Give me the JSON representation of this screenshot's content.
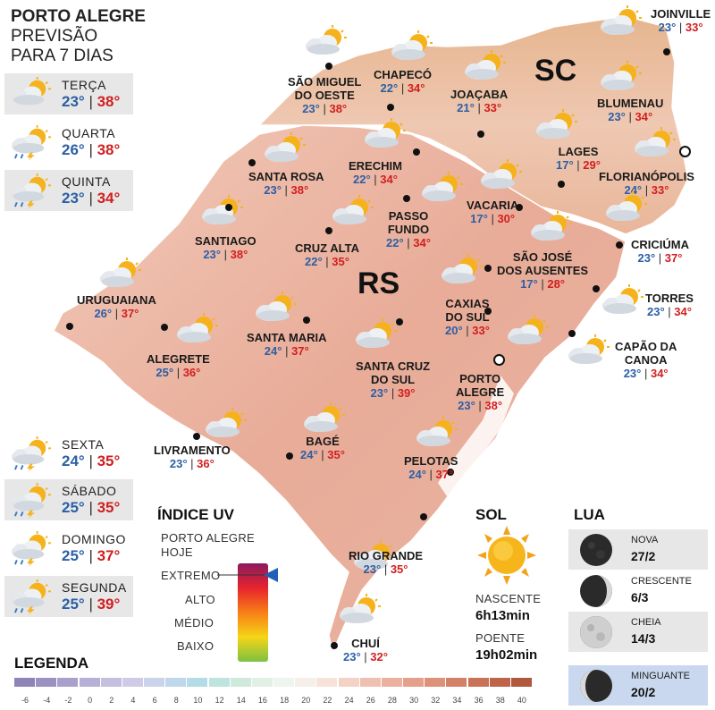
{
  "header": {
    "line1": "PORTO ALEGRE",
    "line2": "PREVISÃO",
    "line3": "PARA 7 DIAS"
  },
  "forecast_days": [
    {
      "day": "TERÇA",
      "min": "23°",
      "max": "38°",
      "icon": "sun-cloud-icon"
    },
    {
      "day": "QUARTA",
      "min": "26°",
      "max": "38°",
      "icon": "storm-sun-icon"
    },
    {
      "day": "QUINTA",
      "min": "23°",
      "max": "34°",
      "icon": "storm-sun-icon"
    },
    {
      "day": "SEXTA",
      "min": "24°",
      "max": "35°",
      "icon": "storm-sun-icon"
    },
    {
      "day": "SÁBADO",
      "min": "25°",
      "max": "35°",
      "icon": "storm-sun-icon"
    },
    {
      "day": "DOMINGO",
      "min": "25°",
      "max": "37°",
      "icon": "storm-sun-icon"
    },
    {
      "day": "SEGUNDA",
      "min": "25°",
      "max": "39°",
      "icon": "storm-sun-icon"
    }
  ],
  "map": {
    "state_rs": "RS",
    "state_sc": "SC",
    "cities": [
      {
        "name": "SÃO MIGUEL\nDO OESTE",
        "min": "23°",
        "max": "38°"
      },
      {
        "name": "CHAPECÓ",
        "min": "22°",
        "max": "34°"
      },
      {
        "name": "JOAÇABA",
        "min": "21°",
        "max": "33°"
      },
      {
        "name": "JOINVILLE",
        "min": "23°",
        "max": "33°"
      },
      {
        "name": "BLUMENAU",
        "min": "23°",
        "max": "34°"
      },
      {
        "name": "LAGES",
        "min": "17°",
        "max": "29°"
      },
      {
        "name": "FLORIANÓPOLIS",
        "min": "24°",
        "max": "33°"
      },
      {
        "name": "SANTA ROSA",
        "min": "23°",
        "max": "38°"
      },
      {
        "name": "ERECHIM",
        "min": "22°",
        "max": "34°"
      },
      {
        "name": "VACARIA",
        "min": "17°",
        "max": "30°"
      },
      {
        "name": "PASSO\nFUNDO",
        "min": "22°",
        "max": "34°"
      },
      {
        "name": "SANTIAGO",
        "min": "23°",
        "max": "38°"
      },
      {
        "name": "CRUZ ALTA",
        "min": "22°",
        "max": "35°"
      },
      {
        "name": "SÃO JOSÉ\nDOS AUSENTES",
        "min": "17°",
        "max": "28°"
      },
      {
        "name": "CRICIÚMA",
        "min": "23°",
        "max": "37°"
      },
      {
        "name": "URUGUAIANA",
        "min": "26°",
        "max": "37°"
      },
      {
        "name": "TORRES",
        "min": "23°",
        "max": "34°"
      },
      {
        "name": "CAXIAS\nDO SUL",
        "min": "20°",
        "max": "33°"
      },
      {
        "name": "SANTA MARIA",
        "min": "24°",
        "max": "37°"
      },
      {
        "name": "ALEGRETE",
        "min": "25°",
        "max": "36°"
      },
      {
        "name": "CAPÃO DA\nCANOA",
        "min": "23°",
        "max": "34°"
      },
      {
        "name": "SANTA CRUZ\nDO SUL",
        "min": "23°",
        "max": "39°"
      },
      {
        "name": "PORTO\nALEGRE",
        "min": "23°",
        "max": "38°"
      },
      {
        "name": "LIVRAMENTO",
        "min": "23°",
        "max": "36°"
      },
      {
        "name": "BAGÉ",
        "min": "24°",
        "max": "35°"
      },
      {
        "name": "PELOTAS",
        "min": "24°",
        "max": "37°"
      },
      {
        "name": "RIO GRANDE",
        "min": "23°",
        "max": "35°"
      },
      {
        "name": "CHUÍ",
        "min": "23°",
        "max": "32°"
      }
    ]
  },
  "uv": {
    "title": "ÍNDICE UV",
    "sub1": "PORTO ALEGRE",
    "sub2": "HOJE",
    "levels": [
      "EXTREMO",
      "ALTO",
      "MÉDIO",
      "BAIXO"
    ],
    "current": "EXTREMO",
    "colors": [
      "#8b1a5e",
      "#e8232d",
      "#f77f16",
      "#f6d516",
      "#7dc142"
    ]
  },
  "sun": {
    "title": "SOL",
    "rise_label": "NASCENTE",
    "rise": "6h13min",
    "set_label": "POENTE",
    "set": "19h02min"
  },
  "moon": {
    "title": "LUA",
    "phases": [
      {
        "name": "NOVA",
        "date": "27/2"
      },
      {
        "name": "CRESCENTE",
        "date": "6/3"
      },
      {
        "name": "CHEIA",
        "date": "14/3"
      },
      {
        "name": "MINGUANTE",
        "date": "20/2"
      }
    ]
  },
  "legend": {
    "title": "LEGENDA",
    "ticks": [
      "-6",
      "-4",
      "-2",
      "0",
      "2",
      "4",
      "6",
      "8",
      "10",
      "12",
      "14",
      "16",
      "18",
      "20",
      "22",
      "24",
      "26",
      "28",
      "30",
      "32",
      "34",
      "36",
      "38",
      "40"
    ],
    "colors": [
      "#8e84b8",
      "#9b92c2",
      "#a9a1cc",
      "#b7b0d6",
      "#c4bedf",
      "#cfcbe6",
      "#c9d3ea",
      "#bfd7ea",
      "#b4dce6",
      "#bfe3de",
      "#cfe9dc",
      "#e0f0e4",
      "#eef5ee",
      "#f6efe9",
      "#f7e3da",
      "#f4d2c6",
      "#efc0b0",
      "#ebb09f",
      "#e5a08c",
      "#dd907a",
      "#d38167",
      "#c97257",
      "#bd6449",
      "#b0583e"
    ]
  }
}
